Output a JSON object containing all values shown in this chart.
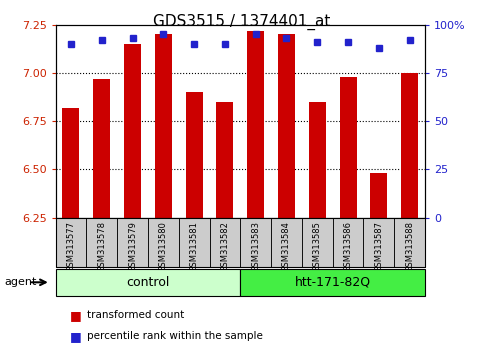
{
  "title": "GDS3515 / 1374401_at",
  "samples": [
    "GSM313577",
    "GSM313578",
    "GSM313579",
    "GSM313580",
    "GSM313581",
    "GSM313582",
    "GSM313583",
    "GSM313584",
    "GSM313585",
    "GSM313586",
    "GSM313587",
    "GSM313588"
  ],
  "bar_values": [
    6.82,
    6.97,
    7.15,
    7.2,
    6.9,
    6.85,
    7.22,
    7.2,
    6.85,
    6.98,
    6.48,
    7.0
  ],
  "percentile_values": [
    90,
    92,
    93,
    95,
    90,
    90,
    95,
    93,
    91,
    91,
    88,
    92
  ],
  "y_min": 6.25,
  "y_max": 7.25,
  "y_ticks": [
    6.25,
    6.5,
    6.75,
    7.0,
    7.25
  ],
  "y2_ticks": [
    0,
    25,
    50,
    75,
    100
  ],
  "y2_tick_labels": [
    "0",
    "25",
    "50",
    "75",
    "100%"
  ],
  "bar_color": "#cc0000",
  "dot_color": "#2222cc",
  "grid_color": "#000000",
  "bar_width": 0.55,
  "groups": [
    {
      "label": "control",
      "start": 0,
      "end": 5,
      "color": "#ccffcc"
    },
    {
      "label": "htt-171-82Q",
      "start": 6,
      "end": 11,
      "color": "#44ee44"
    }
  ],
  "agent_label": "agent",
  "legend_bar_label": "transformed count",
  "legend_dot_label": "percentile rank within the sample",
  "title_fontsize": 11,
  "axis_label_color_left": "#cc2200",
  "axis_label_color_right": "#2222cc",
  "sample_box_color": "#cccccc"
}
